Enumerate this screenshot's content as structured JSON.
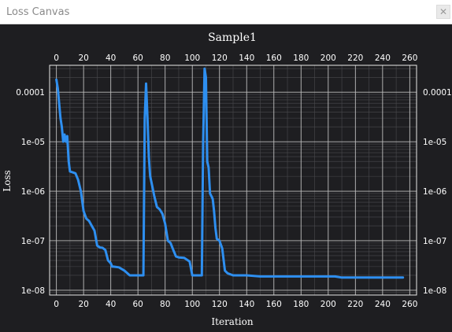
{
  "window": {
    "title": "Loss Canvas",
    "close_glyph": "✕"
  },
  "chart_data": {
    "type": "line",
    "title": "Sample1",
    "xlabel": "Iteration",
    "ylabel": "Loss",
    "xlim": [
      -5,
      265
    ],
    "ylim": [
      8e-09,
      0.00035
    ],
    "yscale": "log",
    "grid": true,
    "x_ticks": [
      0,
      20,
      40,
      60,
      80,
      100,
      120,
      140,
      160,
      180,
      200,
      220,
      240,
      260
    ],
    "y_ticks": [
      0.0001,
      1e-05,
      1e-06,
      1e-07,
      1e-08
    ],
    "y_tick_labels": [
      "0.0001",
      "1e-05",
      "1e-06",
      "1e-07",
      "1e-08"
    ],
    "series": [
      {
        "color": "#2e8ff0",
        "x": [
          0,
          1,
          2,
          3,
          4,
          5,
          6,
          7,
          8,
          9,
          10,
          12,
          14,
          16,
          18,
          20,
          22,
          24,
          26,
          28,
          30,
          32,
          34,
          36,
          38,
          40,
          41,
          42,
          46,
          50,
          54,
          58,
          60,
          62,
          64,
          65,
          66,
          67,
          68,
          69,
          70,
          72,
          74,
          76,
          78,
          80,
          82,
          84,
          86,
          88,
          90,
          94,
          98,
          100,
          102,
          104,
          106,
          107,
          108,
          109,
          110,
          111,
          112,
          113,
          114,
          115,
          116,
          117,
          118,
          120,
          122,
          124,
          126,
          130,
          140,
          150,
          170,
          190,
          200,
          205,
          210,
          220,
          240,
          255
        ],
        "y": [
          0.00018,
          0.00012,
          6e-05,
          3e-05,
          2e-05,
          1e-05,
          1.4e-05,
          1e-05,
          1.3e-05,
          4e-06,
          2.5e-06,
          2.4e-06,
          2.3e-06,
          1.7e-06,
          1e-06,
          4e-07,
          2.8e-07,
          2.5e-07,
          2e-07,
          1.6e-07,
          8e-08,
          7.3e-08,
          7.2e-08,
          6.5e-08,
          4e-08,
          3.5e-08,
          3e-08,
          3e-08,
          2.9e-08,
          2.5e-08,
          2e-08,
          2e-08,
          2e-08,
          2e-08,
          2e-08,
          3e-05,
          0.00015,
          3e-05,
          5e-06,
          2e-06,
          1.5e-06,
          8e-07,
          4.8e-07,
          4.3e-07,
          3.5e-07,
          2.2e-07,
          1e-07,
          9e-08,
          6.5e-08,
          4.8e-08,
          4.6e-08,
          4.5e-08,
          3.8e-08,
          2e-08,
          2e-08,
          2e-08,
          2e-08,
          2e-08,
          1e-05,
          0.0003,
          0.0002,
          4e-06,
          3e-06,
          9e-07,
          8e-07,
          7e-07,
          4e-07,
          1.8e-07,
          1.1e-07,
          1e-07,
          7e-08,
          2.5e-08,
          2.2e-08,
          2e-08,
          2e-08,
          1.9e-08,
          1.9e-08,
          1.9e-08,
          1.9e-08,
          1.9e-08,
          1.8e-08,
          1.8e-08,
          1.8e-08,
          1.8e-08
        ]
      }
    ]
  }
}
